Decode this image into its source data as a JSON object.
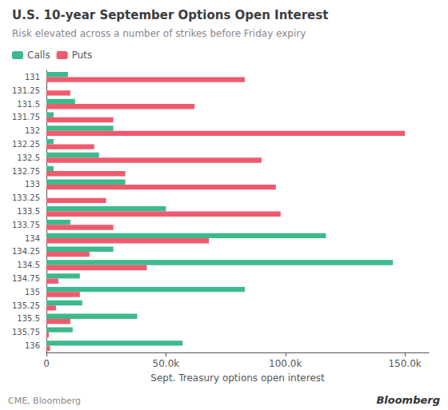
{
  "chart_data": {
    "type": "bar",
    "orientation": "horizontal",
    "title": "U.S. 10-year September Options Open Interest",
    "subtitle": "Risk elevated across a number of strikes before Friday expiry",
    "xlabel": "Sept. Treasury options open interest",
    "annotations": [
      "CME, Bloomberg",
      "Bloomberg"
    ],
    "categories": [
      "131",
      "131.25",
      "131.5",
      "131.75",
      "132",
      "132.25",
      "132.5",
      "132.75",
      "133",
      "133.25",
      "133.5",
      "133.75",
      "134",
      "134.25",
      "134.5",
      "134.75",
      "135",
      "135.25",
      "135.5",
      "135.75",
      "136"
    ],
    "series": [
      {
        "name": "Calls",
        "color": "#3dba8c",
        "values": [
          9000,
          0,
          12000,
          3000,
          28000,
          3000,
          22000,
          3000,
          33000,
          0,
          50000,
          10000,
          117000,
          28000,
          145000,
          14000,
          83000,
          15000,
          38000,
          11000,
          57000
        ]
      },
      {
        "name": "Puts",
        "color": "#f05a6e",
        "values": [
          83000,
          10000,
          62000,
          28000,
          150000,
          20000,
          90000,
          33000,
          96000,
          25000,
          98000,
          28000,
          68000,
          18000,
          42000,
          5000,
          14000,
          4000,
          10000,
          1000,
          1500
        ]
      }
    ],
    "xlim": [
      0,
      160000
    ],
    "xticks": [
      0,
      {
        "value": 50000,
        "label": "50.0k"
      },
      {
        "value": 100000,
        "label": "100.0k"
      },
      {
        "value": 150000,
        "label": "150.0k"
      }
    ],
    "grid": false,
    "legend": "upper left"
  }
}
